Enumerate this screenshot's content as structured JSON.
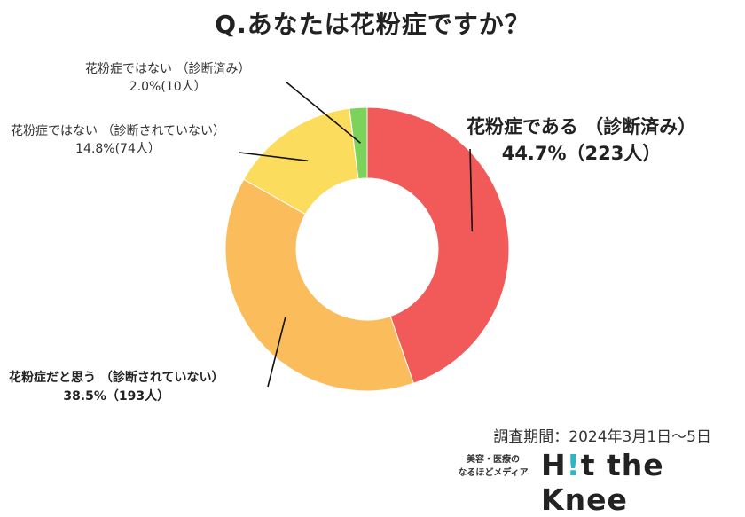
{
  "chart_data": {
    "type": "pie",
    "title": "Q.あなたは花粉症ですか？",
    "start_angle_deg": 0,
    "direction": "clockwise",
    "slices": [
      {
        "label": "花粉症である （診断済み）",
        "value": 44.7,
        "value_text": "44.7%（223人）",
        "count": 223,
        "color": "#f25a5a"
      },
      {
        "label": "花粉症だと思う （診断されていない）",
        "value": 38.5,
        "value_text": "38.5%（193人）",
        "count": 193,
        "color": "#fbbd5c"
      },
      {
        "label": "花粉症ではない （診断されていない）",
        "value": 14.8,
        "value_text": "14.8%(74人）",
        "count": 74,
        "color": "#fcdc5c"
      },
      {
        "label": "花粉症ではない （診断済み）",
        "value": 2.0,
        "value_text": "2.0%(10人）",
        "count": 10,
        "color": "#7bd35c"
      }
    ]
  },
  "footer": {
    "survey_period": "調査期間：2024年3月1日〜5日",
    "logo_tagline_1": "美容・医療の",
    "logo_tagline_2": "なるほどメディア",
    "logo_brand_1": "H",
    "logo_brand_bar": "!",
    "logo_brand_2": "t the Knee"
  }
}
